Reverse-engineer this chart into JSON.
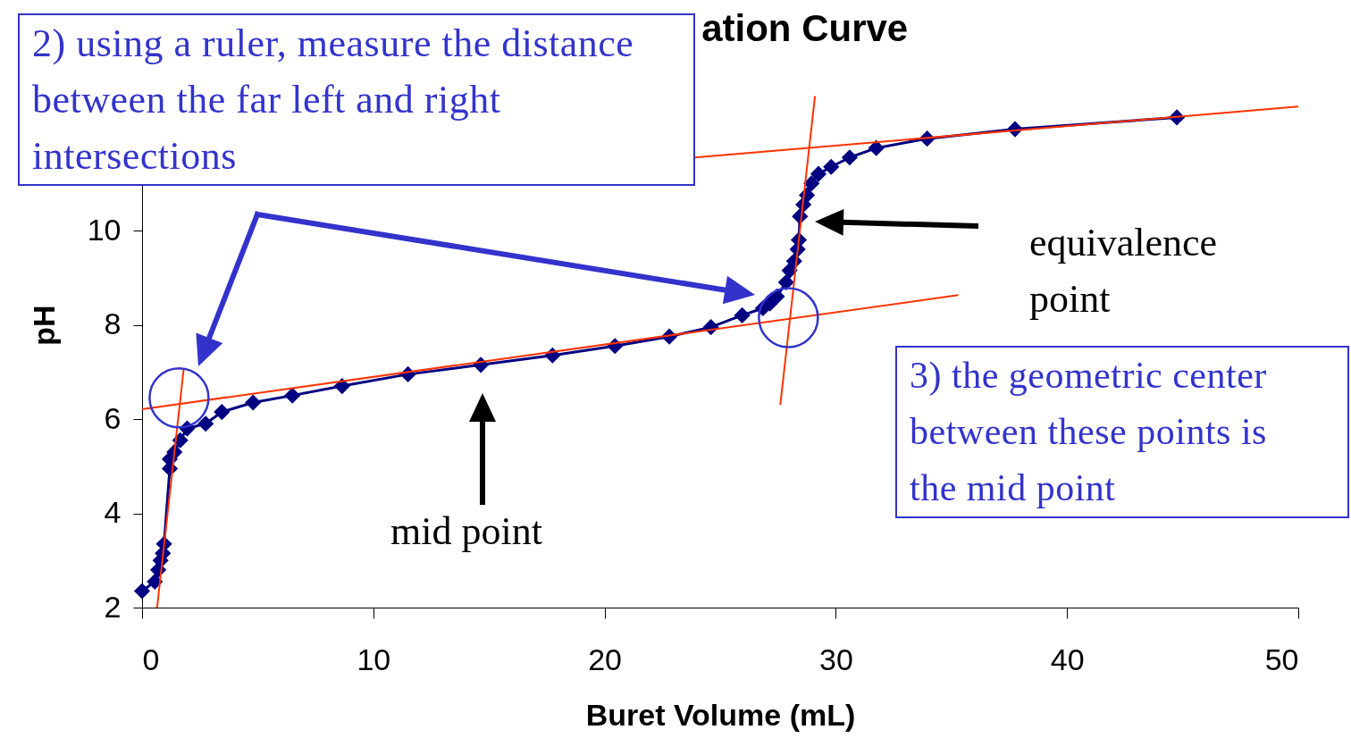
{
  "chart_data": {
    "type": "line",
    "title": "ation Curve",
    "xlabel": "Buret Volume (mL)",
    "ylabel": "pH",
    "xlim": [
      0,
      50
    ],
    "xticks": [
      0,
      10,
      20,
      30,
      40,
      50
    ],
    "ylim": [
      2,
      14
    ],
    "yticks": [
      2,
      4,
      6,
      8,
      10
    ],
    "series": [
      {
        "color": "#000080",
        "marker": "diamond",
        "x": [
          0,
          0.55,
          0.7,
          0.8,
          0.9,
          0.95,
          1.2,
          1.2,
          1.4,
          1.65,
          1.95,
          2.75,
          3.45,
          4.8,
          6.5,
          8.65,
          11.5,
          14.65,
          17.75,
          20.45,
          22.8,
          24.6,
          25.95,
          26.85,
          27.15,
          27.45,
          27.85,
          28.0,
          28.2,
          28.35,
          28.4,
          28.45,
          28.6,
          28.75,
          28.95,
          29.25,
          29.8,
          30.6,
          31.75,
          33.95,
          37.75,
          44.75
        ],
        "values": [
          2.35,
          2.55,
          2.8,
          3.0,
          3.15,
          3.35,
          4.95,
          5.15,
          5.3,
          5.55,
          5.8,
          5.9,
          6.15,
          6.35,
          6.5,
          6.7,
          6.95,
          7.15,
          7.35,
          7.55,
          7.75,
          7.95,
          8.2,
          8.35,
          8.45,
          8.6,
          8.9,
          9.15,
          9.35,
          9.6,
          9.8,
          10.3,
          10.55,
          10.75,
          11.0,
          11.2,
          11.35,
          11.55,
          11.75,
          11.95,
          12.15,
          12.4
        ]
      },
      {
        "type": "line",
        "color": "#ff3300",
        "marker": "none",
        "x": [
          0,
          35.3
        ],
        "values": [
          6.21,
          8.63
        ]
      },
      {
        "type": "line",
        "color": "#ff3300",
        "marker": "none",
        "x": [
          23.9,
          50
        ],
        "values": [
          11.55,
          12.63
        ]
      },
      {
        "type": "line",
        "color": "#ff3300",
        "marker": "none",
        "x": [
          0.65,
          1.8
        ],
        "values": [
          2,
          7.06
        ]
      },
      {
        "type": "line",
        "color": "#ff3300",
        "marker": "none",
        "x": [
          27.6,
          29.1
        ],
        "values": [
          6.3,
          12.85
        ]
      }
    ],
    "annotations": [
      "2) using a ruler, measure the distance between the far left and right intersections",
      "3) the geometric center between these points is the mid point",
      "equivalence point",
      "mid point"
    ]
  }
}
